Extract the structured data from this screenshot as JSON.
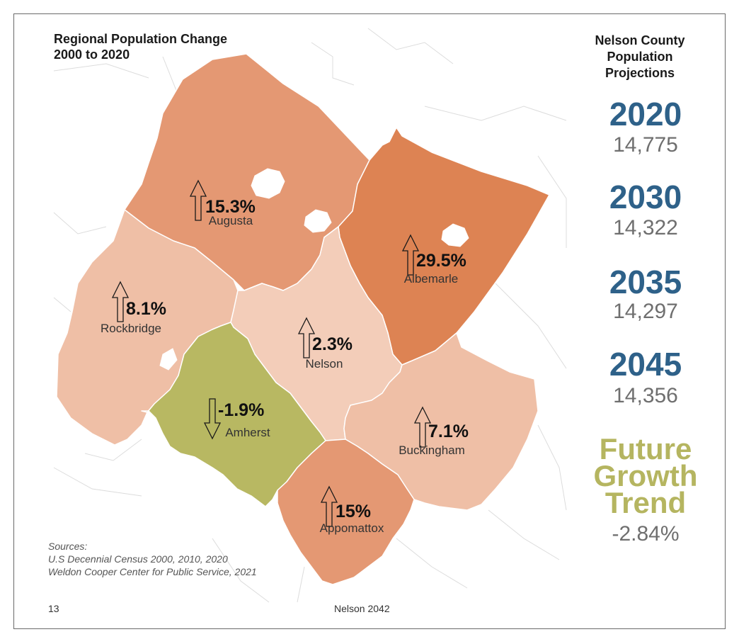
{
  "map": {
    "title_line1": "Regional Population Change",
    "title_line2": "2000 to 2020",
    "counties": [
      {
        "name": "Augusta",
        "change": "15.3%",
        "direction": "up",
        "fill": "#e49873"
      },
      {
        "name": "Albemarle",
        "change": "29.5%",
        "direction": "up",
        "fill": "#dd8353"
      },
      {
        "name": "Rockbridge",
        "change": "8.1%",
        "direction": "up",
        "fill": "#efbfa6"
      },
      {
        "name": "Nelson",
        "change": "2.3%",
        "direction": "up",
        "fill": "#f3cdb9"
      },
      {
        "name": "Amherst",
        "change": "-1.9%",
        "direction": "down",
        "fill": "#b8b862"
      },
      {
        "name": "Buckingham",
        "change": "7.1%",
        "direction": "up",
        "fill": "#efbfa6"
      },
      {
        "name": "Appomattox",
        "change": "15%",
        "direction": "up",
        "fill": "#e49873"
      }
    ],
    "colors": {
      "background_lines": "#dcdcdc",
      "county_border": "#ffffff"
    }
  },
  "projections": {
    "heading_line1": "Nelson County",
    "heading_line2": "Population",
    "heading_line3": "Projections",
    "items": [
      {
        "year": "2020",
        "value": "14,775"
      },
      {
        "year": "2030",
        "value": "14,322"
      },
      {
        "year": "2035",
        "value": "14,297"
      },
      {
        "year": "2045",
        "value": "14,356"
      }
    ],
    "future_line1": "Future",
    "future_line2": "Growth",
    "future_line3": "Trend",
    "future_value": "-2.84%",
    "colors": {
      "year": "#2e6189",
      "value": "#6f6f6f",
      "future": "#b5b560"
    }
  },
  "sources": {
    "label": "Sources:",
    "line1": "U.S Decennial Census 2000, 2010, 2020",
    "line2": "Weldon Cooper Center for Public Service, 2021"
  },
  "footer": {
    "page_number": "13",
    "document": "Nelson 2042"
  }
}
